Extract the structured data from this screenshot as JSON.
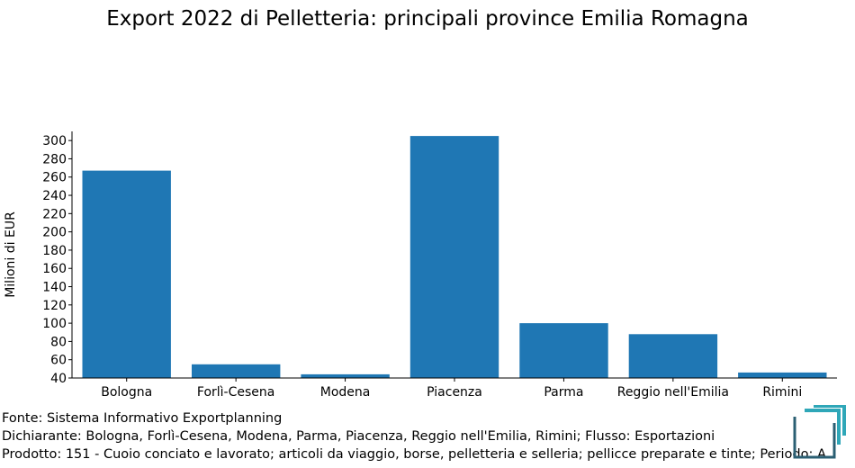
{
  "chart_data": {
    "type": "bar",
    "title": "Export 2022 di Pelletteria: principali province Emilia Romagna",
    "ylabel": "Milioni di EUR",
    "xlabel": "",
    "categories": [
      "Bologna",
      "Forlì-Cesena",
      "Modena",
      "Piacenza",
      "Parma",
      "Reggio nell'Emilia",
      "Rimini"
    ],
    "values": [
      267,
      55,
      44,
      305,
      100,
      88,
      46
    ],
    "ylim": [
      40,
      310
    ],
    "yticks": [
      40,
      60,
      80,
      100,
      120,
      140,
      160,
      180,
      200,
      220,
      240,
      260,
      280,
      300
    ],
    "bar_color": "#1f77b4",
    "grid": false
  },
  "footnotes": {
    "source": "Fonte: Sistema Informativo Exportplanning",
    "declarant": "Dichiarante: Bologna, Forlì-Cesena, Modena, Parma, Piacenza, Reggio nell'Emilia, Rimini; Flusso: Esportazioni",
    "product": "Prodotto: 151 - Cuoio conciato e lavorato; articoli da viaggio, borse, pelletteria e selleria; pellicce preparate e tinte; Periodo: A"
  },
  "logo": {
    "icon": "exportplanning-logo-icon",
    "color_dark": "#2b5f73",
    "color_accent": "#2fa7b8"
  }
}
